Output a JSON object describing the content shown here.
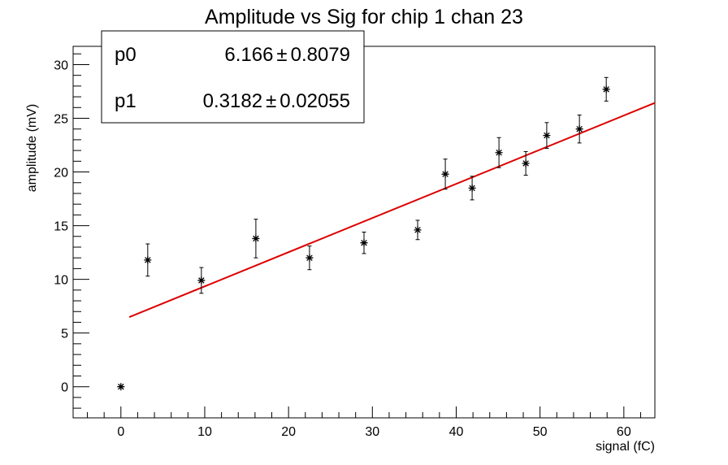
{
  "chart_data": {
    "type": "scatter",
    "title": "Amplitude vs Sig for chip 1 chan 23",
    "xlabel": "signal (fC)",
    "ylabel": "amplitude (mV)",
    "xlim": [
      -5.7,
      63.7
    ],
    "ylim": [
      -2.9,
      31.7
    ],
    "x_ticks": [
      0,
      10,
      20,
      30,
      40,
      50,
      60
    ],
    "y_ticks": [
      0,
      5,
      10,
      15,
      20,
      25,
      30
    ],
    "grid": false,
    "series": [
      {
        "marker": "asterisk",
        "color": "#000000",
        "points": [
          {
            "x": 0.0,
            "y": 0.0,
            "err": 0.0
          },
          {
            "x": 3.2,
            "y": 11.8,
            "err": 1.5
          },
          {
            "x": 9.6,
            "y": 9.9,
            "err": 1.2
          },
          {
            "x": 16.1,
            "y": 13.8,
            "err": 1.8
          },
          {
            "x": 22.5,
            "y": 12.0,
            "err": 1.1
          },
          {
            "x": 29.0,
            "y": 13.4,
            "err": 1.0
          },
          {
            "x": 35.4,
            "y": 14.6,
            "err": 0.9
          },
          {
            "x": 38.7,
            "y": 19.8,
            "err": 1.4
          },
          {
            "x": 41.9,
            "y": 18.5,
            "err": 1.1
          },
          {
            "x": 45.1,
            "y": 21.8,
            "err": 1.4
          },
          {
            "x": 48.3,
            "y": 20.8,
            "err": 1.1
          },
          {
            "x": 50.8,
            "y": 23.4,
            "err": 1.2
          },
          {
            "x": 54.7,
            "y": 24.0,
            "err": 1.3
          },
          {
            "x": 57.9,
            "y": 27.7,
            "err": 1.1
          }
        ]
      }
    ],
    "fit": {
      "color": "#dd0000",
      "p0": 6.166,
      "p1": 0.3182,
      "x_range": [
        1.0,
        63.7
      ]
    },
    "stats_box": {
      "rows": [
        {
          "name": "p0",
          "value": "6.166",
          "error": "0.8079"
        },
        {
          "name": "p1",
          "value": "0.3182",
          "error": "0.02055"
        }
      ],
      "pm_symbol": "±"
    }
  }
}
